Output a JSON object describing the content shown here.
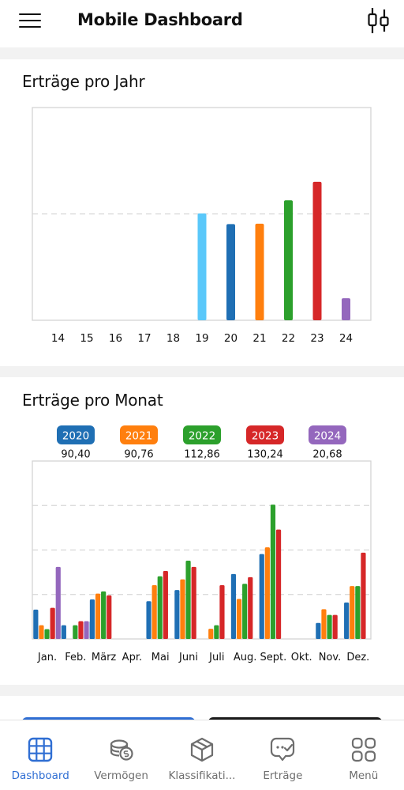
{
  "header": {
    "title": "Mobile Dashboard",
    "menu_icon": "hamburger-menu-icon",
    "action_icon": "candlestick-icon"
  },
  "yearly_card": {
    "title": "Erträge pro Jahr"
  },
  "monthly_card": {
    "title": "Erträge pro Monat",
    "legend": [
      {
        "year": "2020",
        "total": "90,40",
        "color": "#1f6fb4"
      },
      {
        "year": "2021",
        "total": "90,76",
        "color": "#ff7f0e"
      },
      {
        "year": "2022",
        "total": "112,86",
        "color": "#2ca02c"
      },
      {
        "year": "2023",
        "total": "130,24",
        "color": "#d62728"
      },
      {
        "year": "2024",
        "total": "20,68",
        "color": "#9467bd"
      }
    ]
  },
  "chart_data": [
    {
      "type": "bar",
      "title": "Erträge pro Jahr",
      "categories": [
        "14",
        "15",
        "16",
        "17",
        "18",
        "19",
        "20",
        "21",
        "22",
        "23",
        "24"
      ],
      "values": [
        0,
        0,
        0,
        0,
        0,
        100.5,
        90.4,
        90.76,
        112.86,
        130.24,
        20.68
      ],
      "colors": [
        "#5ac8fa",
        "#5ac8fa",
        "#5ac8fa",
        "#5ac8fa",
        "#5ac8fa",
        "#5ac8fa",
        "#1f6fb4",
        "#ff7f0e",
        "#2ca02c",
        "#d62728",
        "#9467bd"
      ],
      "ylim": [
        0,
        200
      ],
      "grid": "horizontal dashed"
    },
    {
      "type": "bar",
      "title": "Erträge pro Monat",
      "categories": [
        "Jan.",
        "Feb.",
        "März",
        "Apr.",
        "Mai",
        "Juni",
        "Juli",
        "Aug.",
        "Sept.",
        "Okt.",
        "Nov.",
        "Dez."
      ],
      "series": [
        {
          "name": "2020",
          "color": "#1f6fb4",
          "values": [
            6.6,
            0,
            8.9,
            0,
            8.5,
            11.0,
            0,
            14.6,
            19.1,
            0,
            3.6,
            8.2
          ]
        },
        {
          "name": "2021",
          "color": "#ff7f0e",
          "values": [
            3.1,
            0,
            10.2,
            0,
            12.1,
            13.4,
            2.3,
            9.0,
            20.6,
            0,
            6.7,
            11.9
          ]
        },
        {
          "name": "2022",
          "color": "#2ca02c",
          "values": [
            2.2,
            3.1,
            10.7,
            0,
            14.1,
            17.6,
            3.1,
            12.4,
            30.2,
            0,
            5.4,
            11.9
          ]
        },
        {
          "name": "2023",
          "color": "#d62728",
          "values": [
            7.0,
            4.0,
            9.8,
            0,
            15.3,
            16.2,
            12.1,
            13.9,
            24.6,
            0,
            5.4,
            19.4
          ]
        },
        {
          "name": "2024",
          "color": "#9467bd",
          "values": [
            16.2,
            4.0,
            0,
            0,
            0,
            0,
            0,
            0,
            0,
            0,
            0,
            0
          ]
        }
      ],
      "extra_bars": [
        {
          "month": "Jan.",
          "color": "#1f6fb4",
          "value": 3.1
        },
        {
          "month": "Feb.",
          "color": "#1f6fb4",
          "value": 4.0
        }
      ],
      "ylim": [
        0,
        40
      ],
      "grid": "horizontal dashed"
    }
  ],
  "bottom_nav": [
    {
      "label": "Dashboard",
      "icon": "grid-icon",
      "active": true
    },
    {
      "label": "Vermögen",
      "icon": "coins-icon",
      "active": false
    },
    {
      "label": "Klassifikati...",
      "icon": "cube-icon",
      "active": false
    },
    {
      "label": "Erträge",
      "icon": "income-icon",
      "active": false
    },
    {
      "label": "Menü",
      "icon": "apps-icon",
      "active": false
    }
  ]
}
